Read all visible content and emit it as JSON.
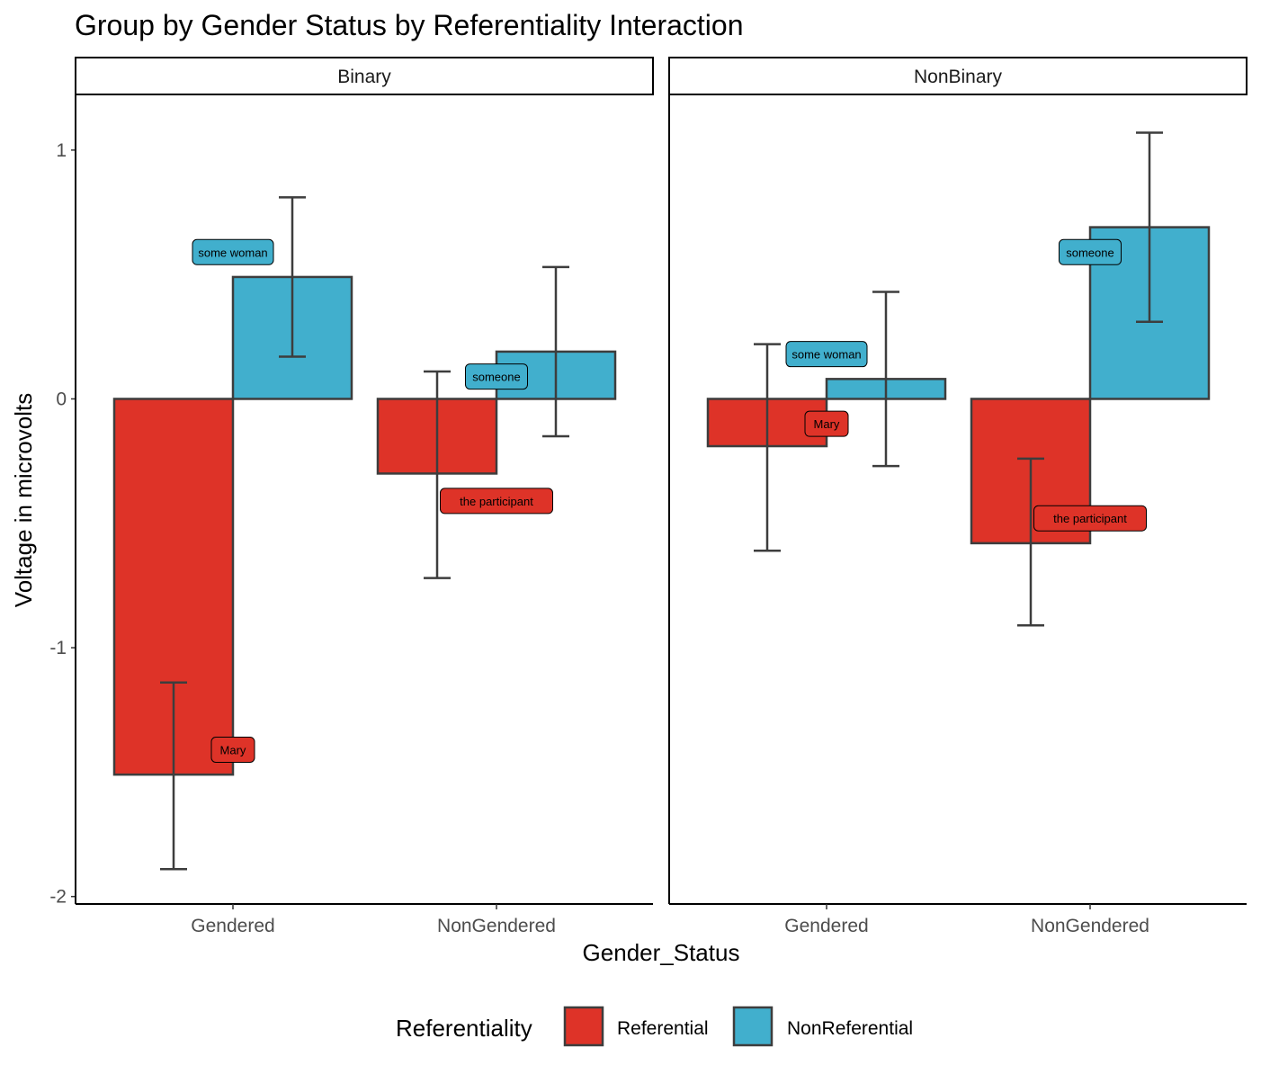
{
  "chart_data": {
    "type": "bar",
    "title": "Group by Gender Status by Referentiality Interaction",
    "xlabel": "Gender_Status",
    "ylabel": "Voltage in microvolts",
    "ylim": [
      -2.03,
      1.22
    ],
    "yticks": [
      1,
      0,
      -1,
      -2
    ],
    "yticklabels": [
      "1",
      "0",
      "-1",
      "-2"
    ],
    "grid": false,
    "legend": {
      "title": "Referentiality",
      "position": "bottom",
      "entries": [
        {
          "name": "Referential",
          "color": "#DE3328"
        },
        {
          "name": "NonReferential",
          "color": "#41AFCD"
        }
      ]
    },
    "categories": [
      "Gendered",
      "NonGendered"
    ],
    "panels": [
      {
        "name": "Binary",
        "series": [
          {
            "name": "Referential",
            "values": [
              -1.51,
              -0.3
            ],
            "err_low": [
              -1.89,
              -0.72
            ],
            "err_high": [
              -1.14,
              0.11
            ],
            "labels": [
              "Mary",
              "the participant"
            ],
            "label_y": [
              -1.41,
              -0.41
            ]
          },
          {
            "name": "NonReferential",
            "values": [
              0.49,
              0.19
            ],
            "err_low": [
              0.17,
              -0.15
            ],
            "err_high": [
              0.81,
              0.53
            ],
            "labels": [
              "some woman",
              "someone"
            ],
            "label_y": [
              0.59,
              0.09
            ]
          }
        ]
      },
      {
        "name": "NonBinary",
        "series": [
          {
            "name": "Referential",
            "values": [
              -0.19,
              -0.58
            ],
            "err_low": [
              -0.61,
              -0.91
            ],
            "err_high": [
              0.22,
              -0.24
            ],
            "labels": [
              "Mary",
              "the participant"
            ],
            "label_y": [
              -0.1,
              -0.48
            ]
          },
          {
            "name": "NonReferential",
            "values": [
              0.08,
              0.69
            ],
            "err_low": [
              -0.27,
              0.31
            ],
            "err_high": [
              0.43,
              1.07
            ],
            "labels": [
              "some woman",
              "someone"
            ],
            "label_y": [
              0.18,
              0.59
            ]
          }
        ]
      }
    ]
  }
}
